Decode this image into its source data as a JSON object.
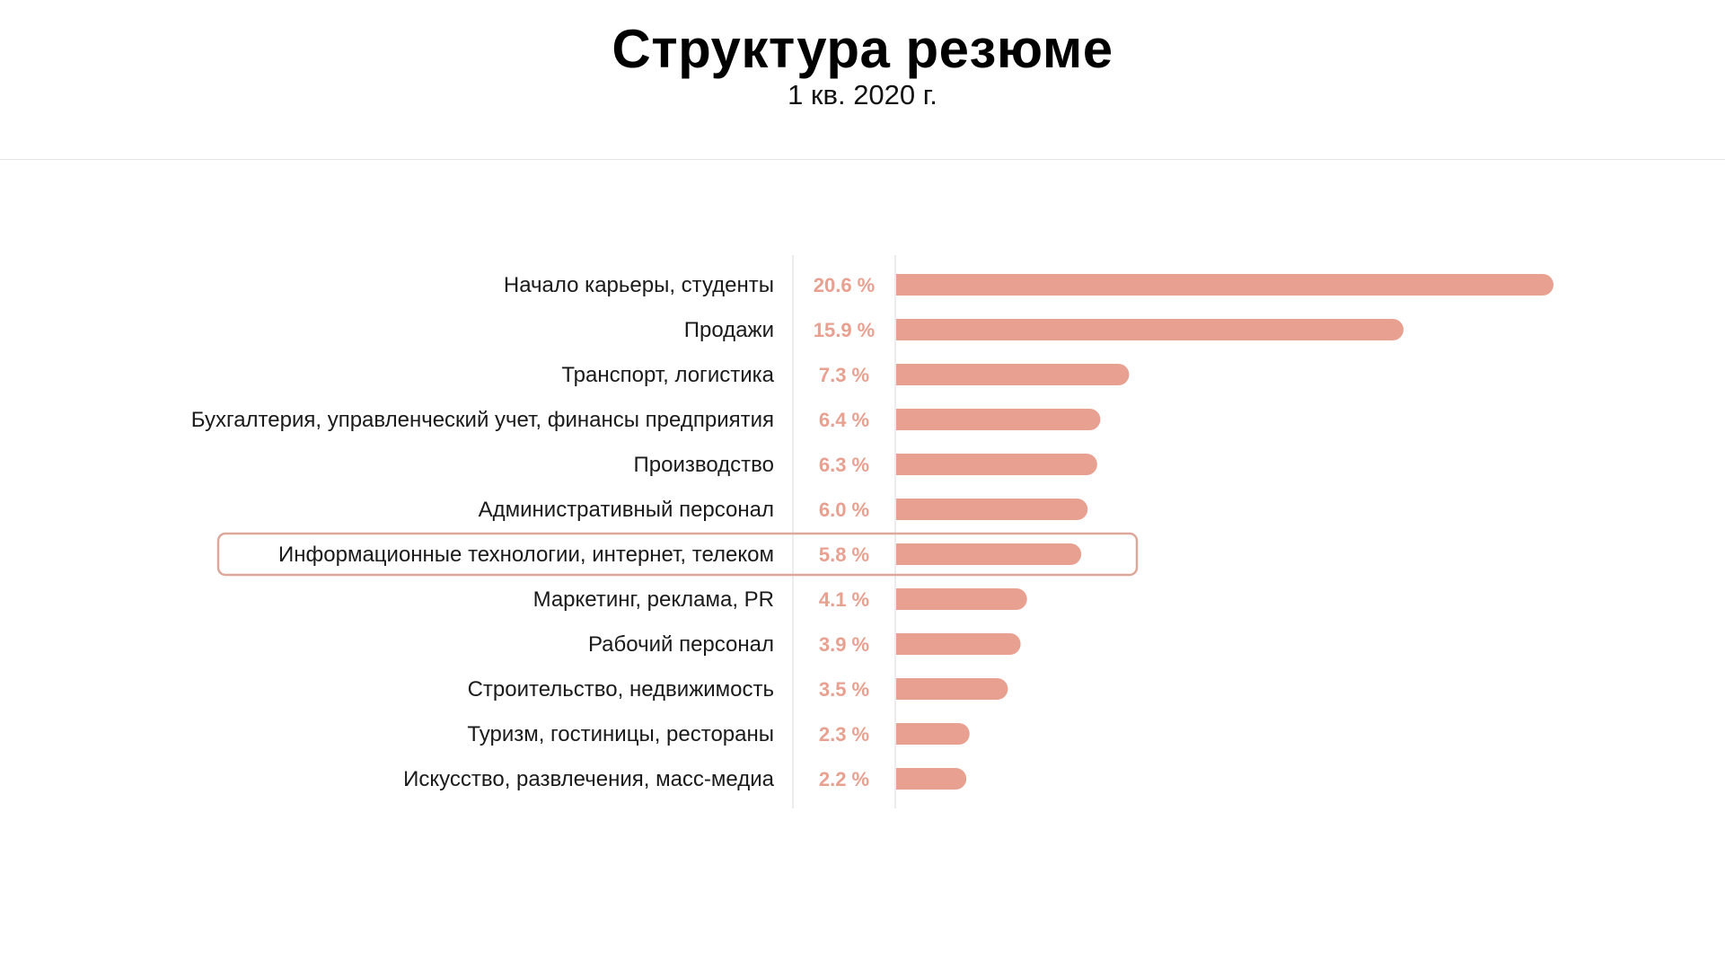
{
  "header": {
    "title": "Структура резюме",
    "subtitle": "1 кв. 2020 г."
  },
  "colors": {
    "bar": "#e8a090",
    "value_text": "#e8a090",
    "highlight_border": "#dda89c",
    "axis_line": "#e6e6e6"
  },
  "chart_data": {
    "type": "bar",
    "orientation": "horizontal",
    "title": "Структура резюме",
    "subtitle": "1 кв. 2020 г.",
    "unit": "%",
    "categories": [
      "Начало карьеры, студенты",
      "Продажи",
      "Транспорт, логистика",
      "Бухгалтерия, управленческий учет, финансы предприятия",
      "Производство",
      "Административный персонал",
      "Информационные технологии, интернет, телеком",
      "Маркетинг, реклама, PR",
      "Рабочий персонал",
      "Строительство, недвижимость",
      "Туризм, гостиницы, рестораны",
      "Искусство, развлечения, масс-медиа"
    ],
    "values": [
      20.6,
      15.9,
      7.3,
      6.4,
      6.3,
      6.0,
      5.8,
      4.1,
      3.9,
      3.5,
      2.3,
      2.2
    ],
    "value_labels": [
      "20.6 %",
      "15.9 %",
      "7.3 %",
      "6.4 %",
      "6.3 %",
      "6.0 %",
      "5.8 %",
      "4.1 %",
      "3.9 %",
      "3.5 %",
      "2.3 %",
      "2.2 %"
    ],
    "highlighted_category": "Информационные технологии, интернет, телеком",
    "xlim": [
      0,
      20.6
    ]
  }
}
